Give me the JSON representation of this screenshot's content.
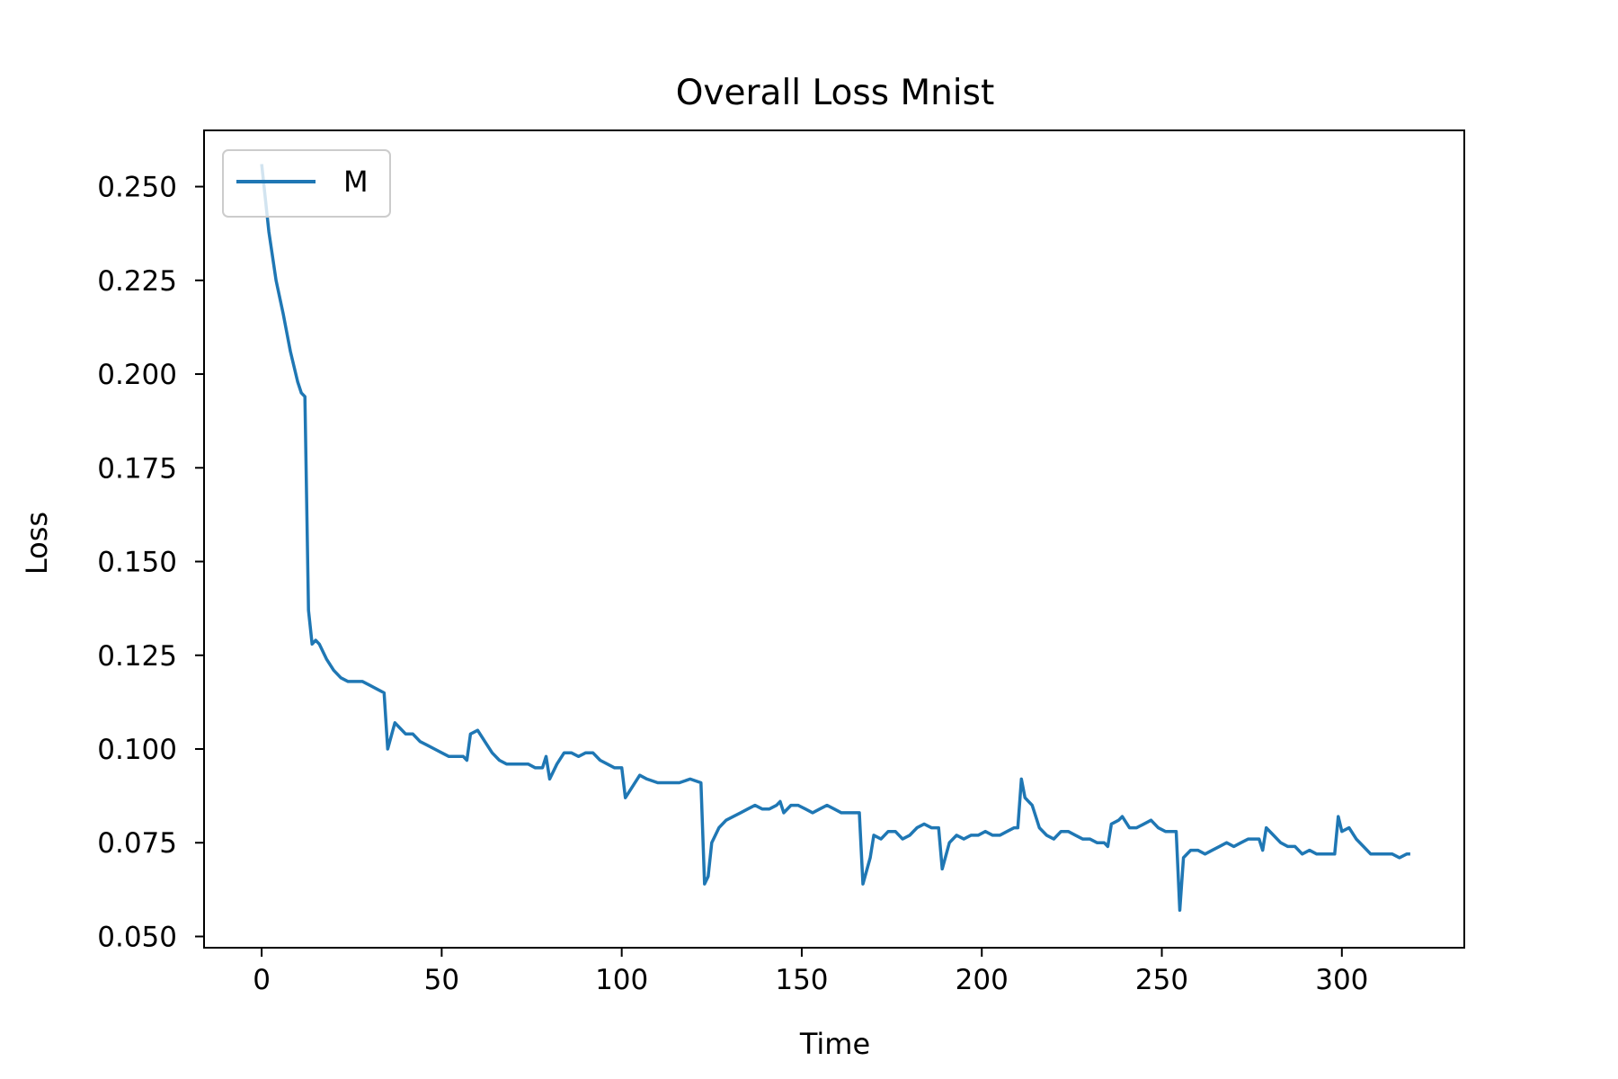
{
  "chart_data": {
    "type": "line",
    "title": "Overall Loss Mnist",
    "xlabel": "Time",
    "ylabel": "Loss",
    "xlim": [
      -16,
      334
    ],
    "ylim": [
      0.047,
      0.265
    ],
    "xticks": [
      0,
      50,
      100,
      150,
      200,
      250,
      300
    ],
    "yticks": [
      0.05,
      0.075,
      0.1,
      0.125,
      0.15,
      0.175,
      0.2,
      0.225,
      0.25
    ],
    "ytick_labels": [
      "0.050",
      "0.075",
      "0.100",
      "0.125",
      "0.150",
      "0.175",
      "0.200",
      "0.225",
      "0.250"
    ],
    "grid": false,
    "legend_position": "top-left",
    "series": [
      {
        "name": "M",
        "color": "#1f77b4",
        "points": [
          [
            0,
            0.256
          ],
          [
            2,
            0.238
          ],
          [
            4,
            0.225
          ],
          [
            6,
            0.216
          ],
          [
            8,
            0.206
          ],
          [
            10,
            0.198
          ],
          [
            11,
            0.195
          ],
          [
            12,
            0.194
          ],
          [
            13,
            0.137
          ],
          [
            14,
            0.128
          ],
          [
            15,
            0.129
          ],
          [
            16,
            0.128
          ],
          [
            18,
            0.124
          ],
          [
            20,
            0.121
          ],
          [
            22,
            0.119
          ],
          [
            24,
            0.118
          ],
          [
            26,
            0.118
          ],
          [
            28,
            0.118
          ],
          [
            30,
            0.117
          ],
          [
            32,
            0.116
          ],
          [
            34,
            0.115
          ],
          [
            35,
            0.1
          ],
          [
            37,
            0.107
          ],
          [
            38,
            0.106
          ],
          [
            40,
            0.104
          ],
          [
            42,
            0.104
          ],
          [
            44,
            0.102
          ],
          [
            46,
            0.101
          ],
          [
            48,
            0.1
          ],
          [
            50,
            0.099
          ],
          [
            52,
            0.098
          ],
          [
            54,
            0.098
          ],
          [
            56,
            0.098
          ],
          [
            57,
            0.097
          ],
          [
            58,
            0.104
          ],
          [
            60,
            0.105
          ],
          [
            62,
            0.102
          ],
          [
            64,
            0.099
          ],
          [
            66,
            0.097
          ],
          [
            68,
            0.096
          ],
          [
            70,
            0.096
          ],
          [
            72,
            0.096
          ],
          [
            74,
            0.096
          ],
          [
            76,
            0.095
          ],
          [
            78,
            0.095
          ],
          [
            79,
            0.098
          ],
          [
            80,
            0.092
          ],
          [
            82,
            0.096
          ],
          [
            84,
            0.099
          ],
          [
            86,
            0.099
          ],
          [
            88,
            0.098
          ],
          [
            90,
            0.099
          ],
          [
            92,
            0.099
          ],
          [
            94,
            0.097
          ],
          [
            96,
            0.096
          ],
          [
            98,
            0.095
          ],
          [
            100,
            0.095
          ],
          [
            101,
            0.087
          ],
          [
            103,
            0.09
          ],
          [
            105,
            0.093
          ],
          [
            107,
            0.092
          ],
          [
            110,
            0.091
          ],
          [
            113,
            0.091
          ],
          [
            116,
            0.091
          ],
          [
            119,
            0.092
          ],
          [
            122,
            0.091
          ],
          [
            123,
            0.064
          ],
          [
            124,
            0.066
          ],
          [
            125,
            0.075
          ],
          [
            127,
            0.079
          ],
          [
            129,
            0.081
          ],
          [
            131,
            0.082
          ],
          [
            133,
            0.083
          ],
          [
            135,
            0.084
          ],
          [
            137,
            0.085
          ],
          [
            139,
            0.084
          ],
          [
            141,
            0.084
          ],
          [
            143,
            0.085
          ],
          [
            144,
            0.086
          ],
          [
            145,
            0.083
          ],
          [
            147,
            0.085
          ],
          [
            149,
            0.085
          ],
          [
            151,
            0.084
          ],
          [
            153,
            0.083
          ],
          [
            155,
            0.084
          ],
          [
            157,
            0.085
          ],
          [
            159,
            0.084
          ],
          [
            161,
            0.083
          ],
          [
            163,
            0.083
          ],
          [
            166,
            0.083
          ],
          [
            167,
            0.064
          ],
          [
            169,
            0.071
          ],
          [
            170,
            0.077
          ],
          [
            172,
            0.076
          ],
          [
            174,
            0.078
          ],
          [
            176,
            0.078
          ],
          [
            178,
            0.076
          ],
          [
            180,
            0.077
          ],
          [
            182,
            0.079
          ],
          [
            184,
            0.08
          ],
          [
            186,
            0.079
          ],
          [
            188,
            0.079
          ],
          [
            189,
            0.068
          ],
          [
            191,
            0.075
          ],
          [
            193,
            0.077
          ],
          [
            195,
            0.076
          ],
          [
            197,
            0.077
          ],
          [
            199,
            0.077
          ],
          [
            201,
            0.078
          ],
          [
            203,
            0.077
          ],
          [
            205,
            0.077
          ],
          [
            207,
            0.078
          ],
          [
            209,
            0.079
          ],
          [
            210,
            0.079
          ],
          [
            211,
            0.092
          ],
          [
            212,
            0.087
          ],
          [
            214,
            0.085
          ],
          [
            216,
            0.079
          ],
          [
            218,
            0.077
          ],
          [
            220,
            0.076
          ],
          [
            222,
            0.078
          ],
          [
            224,
            0.078
          ],
          [
            226,
            0.077
          ],
          [
            228,
            0.076
          ],
          [
            230,
            0.076
          ],
          [
            232,
            0.075
          ],
          [
            234,
            0.075
          ],
          [
            235,
            0.074
          ],
          [
            236,
            0.08
          ],
          [
            238,
            0.081
          ],
          [
            239,
            0.082
          ],
          [
            241,
            0.079
          ],
          [
            243,
            0.079
          ],
          [
            245,
            0.08
          ],
          [
            247,
            0.081
          ],
          [
            249,
            0.079
          ],
          [
            251,
            0.078
          ],
          [
            254,
            0.078
          ],
          [
            255,
            0.057
          ],
          [
            256,
            0.071
          ],
          [
            258,
            0.073
          ],
          [
            260,
            0.073
          ],
          [
            262,
            0.072
          ],
          [
            264,
            0.073
          ],
          [
            266,
            0.074
          ],
          [
            268,
            0.075
          ],
          [
            270,
            0.074
          ],
          [
            272,
            0.075
          ],
          [
            274,
            0.076
          ],
          [
            276,
            0.076
          ],
          [
            277,
            0.076
          ],
          [
            278,
            0.073
          ],
          [
            279,
            0.079
          ],
          [
            281,
            0.077
          ],
          [
            283,
            0.075
          ],
          [
            285,
            0.074
          ],
          [
            287,
            0.074
          ],
          [
            289,
            0.072
          ],
          [
            291,
            0.073
          ],
          [
            293,
            0.072
          ],
          [
            295,
            0.072
          ],
          [
            297,
            0.072
          ],
          [
            298,
            0.072
          ],
          [
            299,
            0.082
          ],
          [
            300,
            0.078
          ],
          [
            302,
            0.079
          ],
          [
            304,
            0.076
          ],
          [
            306,
            0.074
          ],
          [
            308,
            0.072
          ],
          [
            310,
            0.072
          ],
          [
            312,
            0.072
          ],
          [
            314,
            0.072
          ],
          [
            316,
            0.071
          ],
          [
            318,
            0.072
          ],
          [
            319,
            0.072
          ]
        ]
      }
    ]
  }
}
